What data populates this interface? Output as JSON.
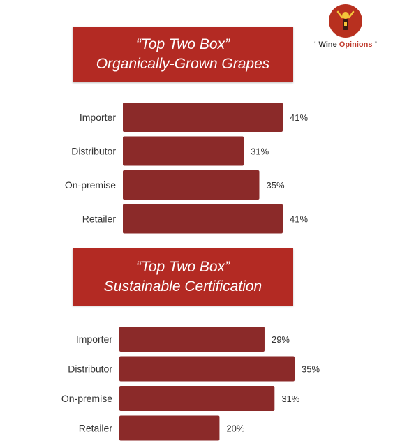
{
  "logo": {
    "open_quote": "“",
    "name_part1": "Wine",
    "name_part2": "Opinions",
    "close_quote": "”",
    "icon": "wine-opinions-logo-icon"
  },
  "colors": {
    "banner": "#b32a23",
    "bar": "#8b2a29",
    "logo": "#b8301f"
  },
  "chart_data": [
    {
      "type": "bar",
      "orientation": "horizontal",
      "title_line1": "“Top Two Box”",
      "title_line2": "Organically-Grown Grapes",
      "categories": [
        "Importer",
        "Distributor",
        "On-premise",
        "Retailer"
      ],
      "values": [
        41,
        31,
        35,
        41
      ],
      "value_labels": [
        "41%",
        "31%",
        "35%",
        "41%"
      ],
      "unit": "%",
      "xlim": [
        0,
        41
      ]
    },
    {
      "type": "bar",
      "orientation": "horizontal",
      "title_line1": "“Top Two Box”",
      "title_line2": "Sustainable Certification",
      "categories": [
        "Importer",
        "Distributor",
        "On-premise",
        "Retailer"
      ],
      "values": [
        29,
        35,
        31,
        20
      ],
      "value_labels": [
        "29%",
        "35%",
        "31%",
        "20%"
      ],
      "unit": "%",
      "xlim": [
        0,
        35
      ]
    }
  ]
}
